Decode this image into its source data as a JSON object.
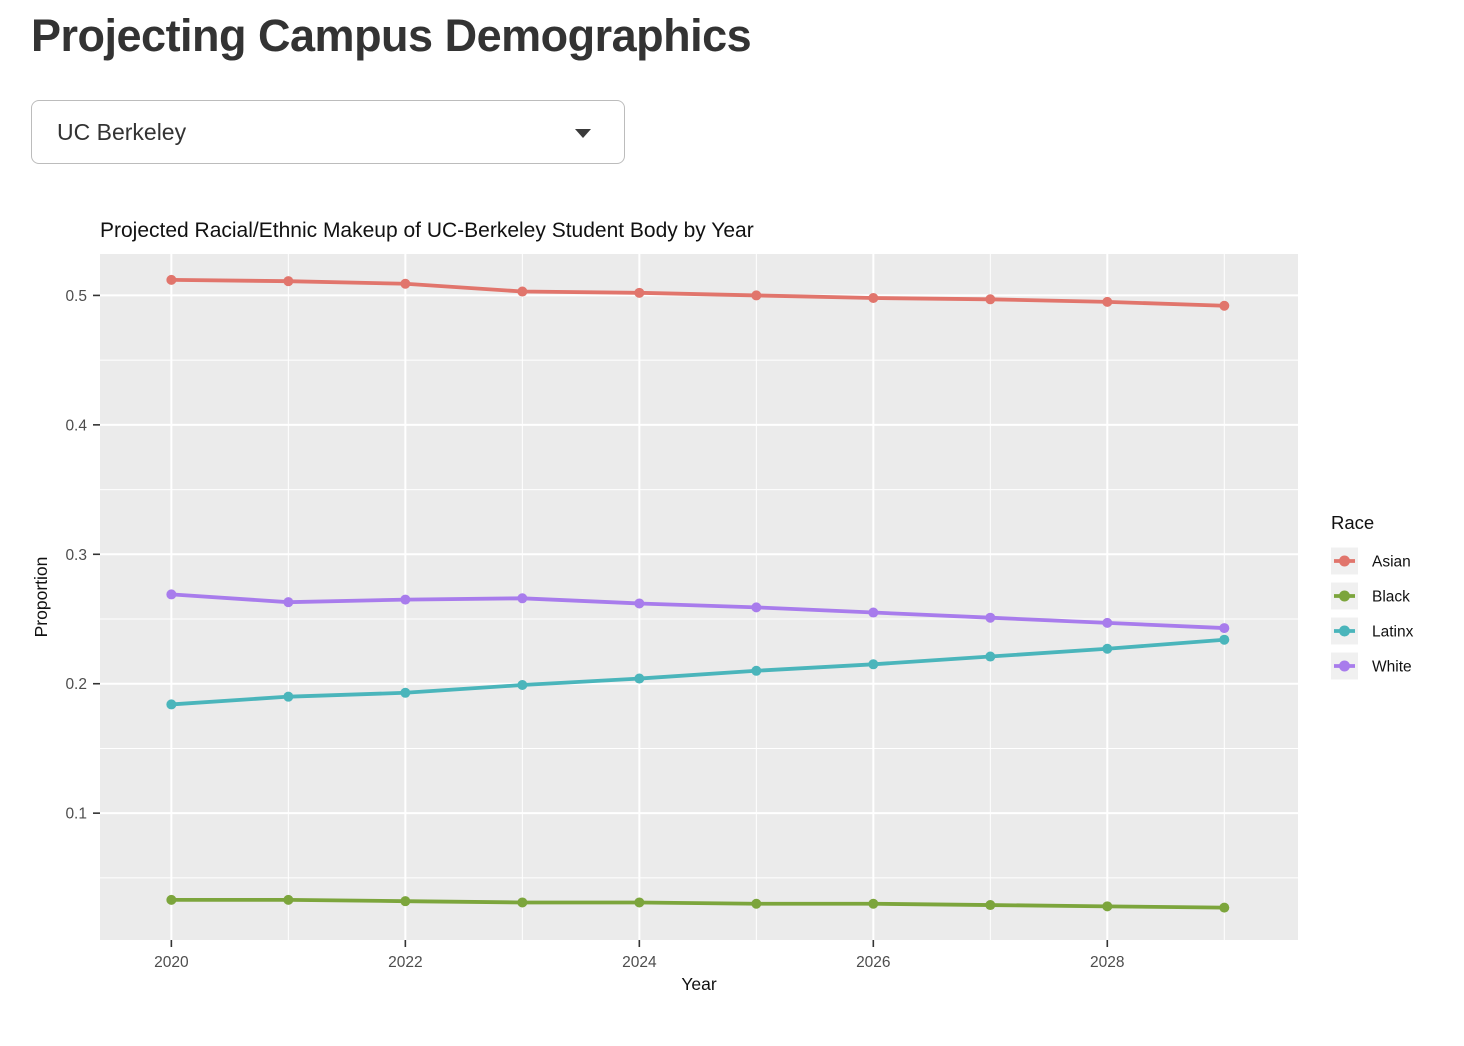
{
  "page": {
    "title": "Projecting Campus Demographics"
  },
  "controls": {
    "university_select": {
      "value": "UC Berkeley"
    }
  },
  "chart_data": {
    "type": "line",
    "title": "Projected Racial/Ethnic Makeup of UC-Berkeley Student Body by Year",
    "xlabel": "Year",
    "ylabel": "Proportion",
    "legend_title": "Race",
    "legend_position": "right",
    "grid": true,
    "x": [
      2020,
      2021,
      2022,
      2023,
      2024,
      2025,
      2026,
      2027,
      2028,
      2029
    ],
    "x_ticks": [
      2020,
      2022,
      2024,
      2026,
      2028
    ],
    "x_tick_labels": [
      "2020",
      "2022",
      "2024",
      "2026",
      "2028"
    ],
    "x_minor_ticks": [
      2021,
      2023,
      2025,
      2027,
      2029
    ],
    "y_ticks": [
      0.1,
      0.2,
      0.3,
      0.4,
      0.5
    ],
    "y_tick_labels": [
      "0.1",
      "0.2",
      "0.3",
      "0.4",
      "0.5"
    ],
    "y_minor_ticks": [
      0.05,
      0.15,
      0.25,
      0.35,
      0.45
    ],
    "xlim": [
      2019.39,
      2029.63
    ],
    "ylim": [
      0.002,
      0.532
    ],
    "colors": {
      "panel_bg": "#EBEBEB",
      "grid_major": "#FFFFFF",
      "grid_minor": "#FFFFFF",
      "tick_mark": "#333333",
      "tick_label": "#4D4D4D",
      "axis_text": "#000000",
      "legend_key_bg": "#F0F0F0"
    },
    "series": [
      {
        "name": "Asian",
        "color": "#E1756C",
        "values": [
          0.512,
          0.511,
          0.509,
          0.503,
          0.502,
          0.5,
          0.498,
          0.497,
          0.495,
          0.492
        ]
      },
      {
        "name": "Black",
        "color": "#7CA53C",
        "values": [
          0.033,
          0.033,
          0.032,
          0.031,
          0.031,
          0.03,
          0.03,
          0.029,
          0.028,
          0.027
        ]
      },
      {
        "name": "Latinx",
        "color": "#4AB5BB",
        "values": [
          0.184,
          0.19,
          0.193,
          0.199,
          0.204,
          0.21,
          0.215,
          0.221,
          0.227,
          0.234
        ]
      },
      {
        "name": "White",
        "color": "#A87CEC",
        "values": [
          0.269,
          0.263,
          0.265,
          0.266,
          0.262,
          0.259,
          0.255,
          0.251,
          0.247,
          0.243
        ]
      }
    ]
  }
}
